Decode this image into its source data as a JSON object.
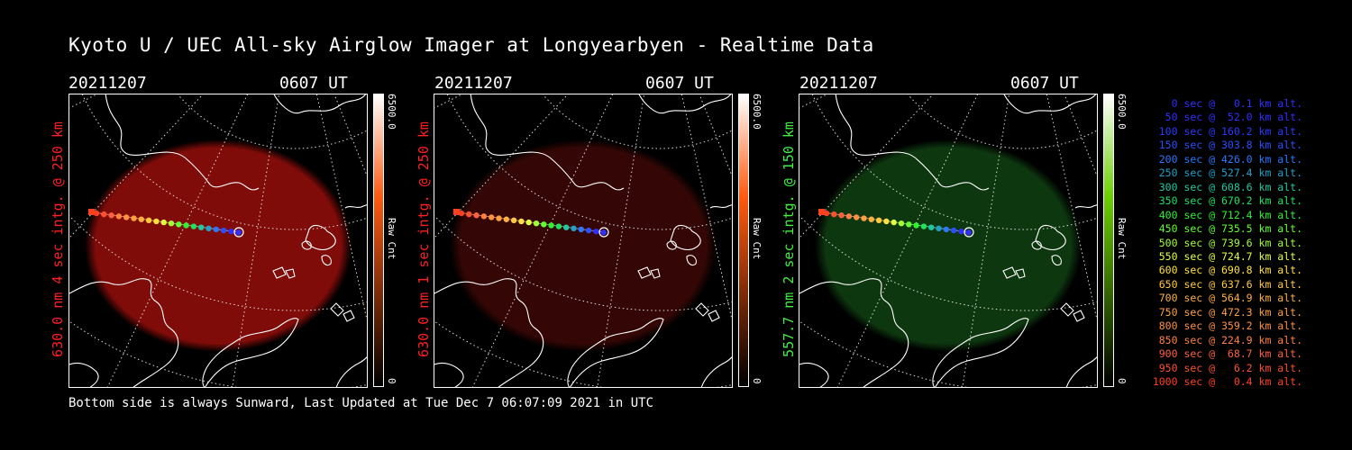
{
  "title": "Kyoto U / UEC All-sky Airglow Imager at Longyearbyen - Realtime Data",
  "panels": [
    {
      "date": "20211207",
      "time": "0607 UT",
      "ylabel": "630.0 nm 4 sec intg. @ 250 km",
      "ylabel_color": "#ff2020",
      "glow_color": "#8a0d0a",
      "glow_opacity": 0.92,
      "cbar_top": "#ffffff",
      "cbar_mid": "#ff5a10",
      "cbar_bottom": "#000000",
      "cbar_max": "6500.0",
      "cbar_min": "0",
      "cbar_unit": "Raw Cnt"
    },
    {
      "date": "20211207",
      "time": "0607 UT",
      "ylabel": "630.0 nm 1 sec intg. @ 250 km",
      "ylabel_color": "#ff2020",
      "glow_color": "#3a0806",
      "glow_opacity": 0.9,
      "cbar_top": "#ffffff",
      "cbar_mid": "#ff5a10",
      "cbar_bottom": "#000000",
      "cbar_max": "6500.0",
      "cbar_min": "0",
      "cbar_unit": "Raw Cnt"
    },
    {
      "date": "20211207",
      "time": "0607 UT",
      "ylabel": "557.7 nm 2 sec intg. @ 150 km",
      "ylabel_color": "#44ee44",
      "glow_color": "#0e3a10",
      "glow_opacity": 0.95,
      "cbar_top": "#ffffff",
      "cbar_mid": "#6ad000",
      "cbar_bottom": "#000000",
      "cbar_max": "6500.0",
      "cbar_min": "0",
      "cbar_unit": "Raw Cnt"
    }
  ],
  "legend": [
    {
      "text": "   0 sec @   0.1 km alt.",
      "color": "#3030ff"
    },
    {
      "text": "  50 sec @  52.0 km alt.",
      "color": "#3030ff"
    },
    {
      "text": " 100 sec @ 160.2 km alt.",
      "color": "#2a3cff"
    },
    {
      "text": " 150 sec @ 303.8 km alt.",
      "color": "#2a50ff"
    },
    {
      "text": " 200 sec @ 426.0 km alt.",
      "color": "#2a78ff"
    },
    {
      "text": " 250 sec @ 527.4 km alt.",
      "color": "#20a0c8"
    },
    {
      "text": " 300 sec @ 608.6 km alt.",
      "color": "#20c8a0"
    },
    {
      "text": " 350 sec @ 670.2 km alt.",
      "color": "#20e060"
    },
    {
      "text": " 400 sec @ 712.4 km alt.",
      "color": "#30f030"
    },
    {
      "text": " 450 sec @ 735.5 km alt.",
      "color": "#60ff30"
    },
    {
      "text": " 500 sec @ 739.6 km alt.",
      "color": "#a0ff30"
    },
    {
      "text": " 550 sec @ 724.7 km alt.",
      "color": "#e0ff40"
    },
    {
      "text": " 600 sec @ 690.8 km alt.",
      "color": "#ffe040"
    },
    {
      "text": " 650 sec @ 637.6 km alt.",
      "color": "#ffc840"
    },
    {
      "text": " 700 sec @ 564.9 km alt.",
      "color": "#ffb040"
    },
    {
      "text": " 750 sec @ 472.3 km alt.",
      "color": "#ffa040"
    },
    {
      "text": " 800 sec @ 359.2 km alt.",
      "color": "#ff9040"
    },
    {
      "text": " 850 sec @ 224.9 km alt.",
      "color": "#ff8040"
    },
    {
      "text": " 900 sec @  68.7 km alt.",
      "color": "#ff6040"
    },
    {
      "text": " 950 sec @   6.2 km alt.",
      "color": "#ff5030"
    },
    {
      "text": "1000 sec @   0.4 km alt.",
      "color": "#ff4020"
    }
  ],
  "footer": "Bottom side is always Sunward, Last Updated at Tue Dec  7 06:07:09 2021 in UTC"
}
